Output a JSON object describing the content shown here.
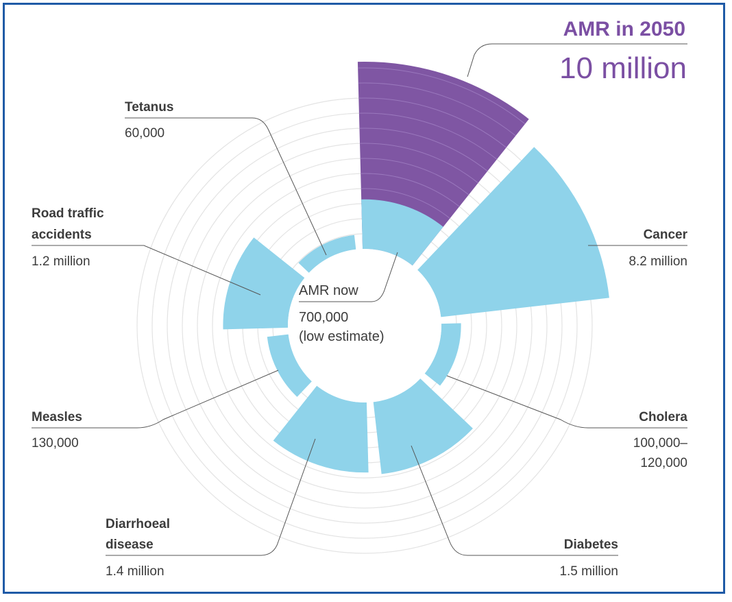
{
  "chart_data": {
    "type": "polar-area",
    "title": "AMR in 2050",
    "headline_value": "10 million",
    "center": {
      "label": "AMR now",
      "value_line1": "700,000",
      "value_line2": "(low estimate)"
    },
    "series": [
      {
        "name": "AMR in 2050",
        "value_label": "10 million",
        "value": 10000000,
        "color": "#7f56a3"
      },
      {
        "name": "Cancer",
        "value_label": "8.2 million",
        "value": 8200000,
        "color": "#8fd3ea"
      },
      {
        "name": "Cholera",
        "value_label_line1": "100,000–",
        "value_label_line2": "120,000",
        "value": 110000,
        "color": "#8fd3ea"
      },
      {
        "name": "Diabetes",
        "value_label": "1.5 million",
        "value": 1500000,
        "color": "#8fd3ea"
      },
      {
        "name_line1": "Diarrhoeal",
        "name_line2": "disease",
        "value_label": "1.4 million",
        "value": 1400000,
        "color": "#8fd3ea"
      },
      {
        "name": "Measles",
        "value_label": "130,000",
        "value": 130000,
        "color": "#8fd3ea"
      },
      {
        "name_line1": "Road traffic",
        "name_line2": "accidents",
        "value_label": "1.2 million",
        "value": 1200000,
        "color": "#8fd3ea"
      },
      {
        "name": "Tetanus",
        "value_label": "60,000",
        "value": 60000,
        "color": "#8fd3ea"
      }
    ],
    "amr_now_value": 700000,
    "amr_now_color": "#8fd3ea",
    "grid": true
  }
}
